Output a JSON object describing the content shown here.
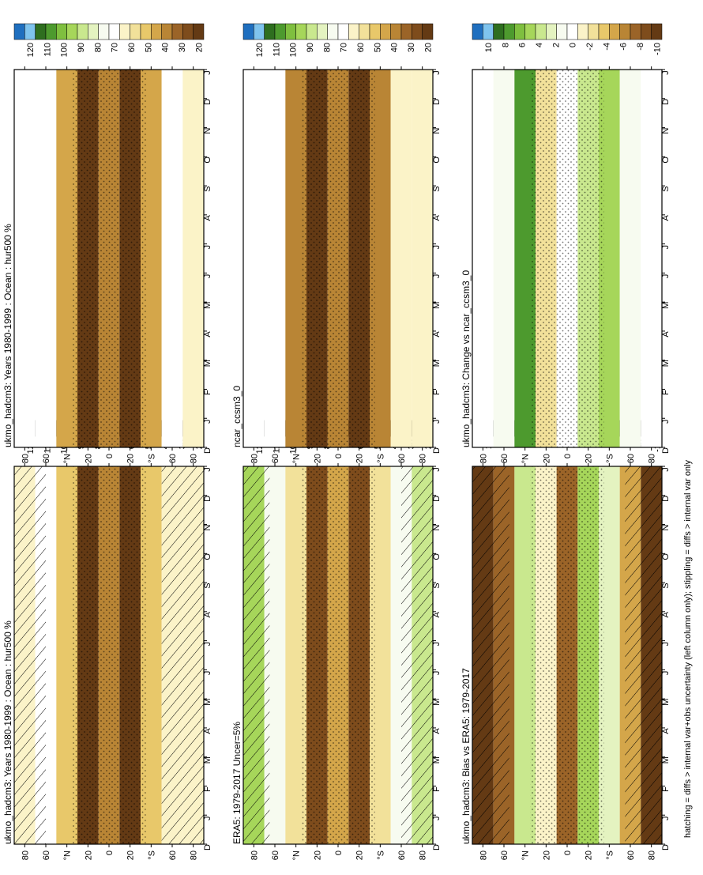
{
  "footer_note": "hatching = diffs > internal var+obs uncertainty (left column only); stippling = diffs > internal var only",
  "month_ticks": [
    "D",
    "J",
    "F",
    "M",
    "A",
    "M",
    "J",
    "J",
    "A",
    "S",
    "O",
    "N",
    "D",
    "J"
  ],
  "lat_ticks": [
    "80",
    "60",
    "°N",
    "20",
    "0",
    "20",
    "°S",
    "60",
    "80"
  ],
  "colorbar_abs": {
    "labels": [
      "120",
      "110",
      "100",
      "90",
      "80",
      "70",
      "60",
      "50",
      "40",
      "30",
      "20"
    ],
    "colors": [
      "#1f6fbf",
      "#7fc4ee",
      "#2e6e1f",
      "#4d9a2e",
      "#7fbf3f",
      "#a6d65a",
      "#c9e88e",
      "#e4f3c0",
      "#f7fbf0",
      "#ffffff",
      "#fbf3c8",
      "#f2e19a",
      "#e8c86a",
      "#d4a64a",
      "#b98535",
      "#9b6428",
      "#7e4c1c",
      "#643a14"
    ]
  },
  "colorbar_diff": {
    "labels": [
      "10",
      "8",
      "6",
      "4",
      "2",
      "0",
      "-2",
      "-4",
      "-6",
      "-8",
      "-10"
    ],
    "colors": [
      "#1f6fbf",
      "#7fc4ee",
      "#2e6e1f",
      "#4d9a2e",
      "#7fbf3f",
      "#a6d65a",
      "#c9e88e",
      "#e4f3c0",
      "#f7fbf0",
      "#ffffff",
      "#fbf3c8",
      "#f2e19a",
      "#e8c86a",
      "#d4a64a",
      "#b98535",
      "#9b6428",
      "#7e4c1c",
      "#643a14"
    ]
  },
  "chart_data": [
    {
      "type": "heatmap",
      "title": "ukmo_hadcm3: Years 1980-1999 : Ocean : hur500 %",
      "colorbar": "abs",
      "xlabel": "",
      "ylabel": "",
      "hatched_bands": [
        [
          60,
          90
        ],
        [
          -90,
          -50
        ]
      ],
      "rows": [
        {
          "lat": 80,
          "v": 60
        },
        {
          "lat": 60,
          "v": 70
        },
        {
          "lat": 40,
          "v": 50
        },
        {
          "lat": 20,
          "v": 25
        },
        {
          "lat": 0,
          "v": 40
        },
        {
          "lat": -20,
          "v": 22
        },
        {
          "lat": -40,
          "v": 50
        },
        {
          "lat": -60,
          "v": 60
        },
        {
          "lat": -80,
          "v": 62
        }
      ]
    },
    {
      "type": "heatmap",
      "title": "ukmo_hadcm3: Years 1980-1999 : Ocean : hur500 %",
      "colorbar": "abs",
      "xlabel": "",
      "ylabel": "",
      "hatched_bands": [],
      "rows": [
        {
          "lat": 80,
          "v": 68
        },
        {
          "lat": 60,
          "v": 70
        },
        {
          "lat": 40,
          "v": 45
        },
        {
          "lat": 20,
          "v": 25
        },
        {
          "lat": 0,
          "v": 38
        },
        {
          "lat": -20,
          "v": 20
        },
        {
          "lat": -40,
          "v": 45
        },
        {
          "lat": -60,
          "v": 65
        },
        {
          "lat": -80,
          "v": 62
        }
      ]
    },
    {
      "type": "heatmap",
      "title": "ERA5: 1979-2017 Uncer=5%",
      "colorbar": "abs",
      "xlabel": "",
      "ylabel": "",
      "hatched_bands": [
        [
          65,
          90
        ],
        [
          -90,
          -60
        ]
      ],
      "rows": [
        {
          "lat": 80,
          "v": 88
        },
        {
          "lat": 60,
          "v": 72
        },
        {
          "lat": 40,
          "v": 55
        },
        {
          "lat": 20,
          "v": 30
        },
        {
          "lat": 0,
          "v": 45
        },
        {
          "lat": -20,
          "v": 30
        },
        {
          "lat": -40,
          "v": 55
        },
        {
          "lat": -60,
          "v": 75
        },
        {
          "lat": -80,
          "v": 85
        }
      ]
    },
    {
      "type": "heatmap",
      "title": "ncar_ccsm3_0",
      "colorbar": "abs",
      "xlabel": "",
      "ylabel": "",
      "hatched_bands": [],
      "rows": [
        {
          "lat": 80,
          "v": 70
        },
        {
          "lat": 60,
          "v": 68
        },
        {
          "lat": 40,
          "v": 40
        },
        {
          "lat": 20,
          "v": 22
        },
        {
          "lat": 0,
          "v": 38
        },
        {
          "lat": -20,
          "v": 22
        },
        {
          "lat": -40,
          "v": 42
        },
        {
          "lat": -60,
          "v": 60
        },
        {
          "lat": -80,
          "v": 62
        }
      ]
    },
    {
      "type": "heatmap",
      "title": "ukmo_hadcm3: Bias vs ERA5: 1979-2017",
      "colorbar": "diff",
      "xlabel": "",
      "ylabel": "",
      "hatched_bands": [
        [
          55,
          90
        ],
        [
          -90,
          -55
        ]
      ],
      "rows": [
        {
          "lat": 80,
          "v": -9
        },
        {
          "lat": 60,
          "v": -7
        },
        {
          "lat": 40,
          "v": 3
        },
        {
          "lat": 20,
          "v": -2
        },
        {
          "lat": 0,
          "v": -7
        },
        {
          "lat": -20,
          "v": 4
        },
        {
          "lat": -40,
          "v": 2
        },
        {
          "lat": -60,
          "v": -5
        },
        {
          "lat": -80,
          "v": -9
        }
      ]
    },
    {
      "type": "heatmap",
      "title": "ukmo_hadcm3: Change vs ncar_ccsm3_0",
      "colorbar": "diff",
      "xlabel": "",
      "ylabel": "",
      "hatched_bands": [],
      "rows": [
        {
          "lat": 80,
          "v": -1
        },
        {
          "lat": 60,
          "v": 1
        },
        {
          "lat": 40,
          "v": 6
        },
        {
          "lat": 20,
          "v": -3
        },
        {
          "lat": 0,
          "v": -1
        },
        {
          "lat": -20,
          "v": 3
        },
        {
          "lat": -40,
          "v": 4
        },
        {
          "lat": -60,
          "v": 1
        },
        {
          "lat": -80,
          "v": 0
        }
      ]
    }
  ]
}
